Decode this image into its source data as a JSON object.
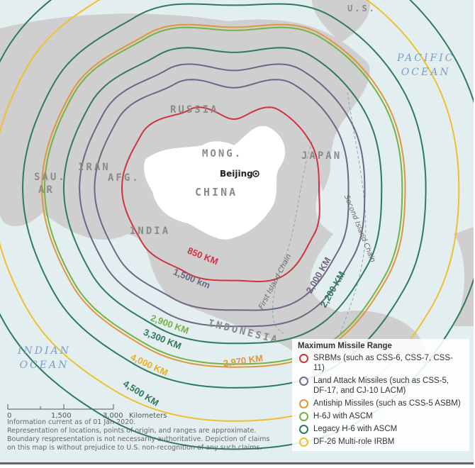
{
  "places": {
    "russia": "RUSSIA",
    "mongolia": "MONG.",
    "china": "CHINA",
    "japan": "JAPAN",
    "india": "INDIA",
    "iran": "IRAN",
    "afghanistan": "AFG.",
    "saudi_arabia_1": "SAU.",
    "saudi_arabia_2": "AR",
    "indonesia": "INDONESIA",
    "us": "U.S.",
    "beijing": "Beijing"
  },
  "oceans": {
    "pacific_1": "PACIFIC",
    "pacific_2": "OCEAN",
    "indian_1": "INDIAN",
    "indian_2": "OCEAN"
  },
  "island_chains": {
    "first": "First Island Chain",
    "second": "Second Island Chain"
  },
  "ranges": [
    {
      "label": "850 KM",
      "color": "#cf3340"
    },
    {
      "label": "1,500 km",
      "color": "#6f6585"
    },
    {
      "label": "2,000 KM",
      "color": "#6f6585"
    },
    {
      "label": "2,200 KM",
      "color": "#2f7a5a"
    },
    {
      "label": "2,900 KM",
      "color": "#74b245"
    },
    {
      "label": "2,970 KM",
      "color": "#e0963a"
    },
    {
      "label": "3,300 KM",
      "color": "#2f7a5a"
    },
    {
      "label": "4,000 KM",
      "color": "#efc02e"
    },
    {
      "label": "4,500 KM",
      "color": "#2f7a5a"
    }
  ],
  "legend": {
    "title": "Maximum Missile Range",
    "items": [
      {
        "label": "SRBMs (such as CSS-6, CSS-7, CSS-11)",
        "color": "#cf3340"
      },
      {
        "label": "Land Attack Missiles (such as CSS-5, DF-17, and CJ-10 LACM)",
        "color": "#7a6a8c"
      },
      {
        "label": "Antiship Missiles (such as CSS-5 ASBM)",
        "color": "#e0963a"
      },
      {
        "label": "H-6J with ASCM",
        "color": "#74b245"
      },
      {
        "label": "Legacy H-6 with ASCM",
        "color": "#2f7a5a"
      },
      {
        "label": "DF-26 Multi-role IRBM",
        "color": "#efc02e"
      }
    ]
  },
  "scale_bar": {
    "ticks": [
      "0",
      "1,500",
      "3,000"
    ],
    "unit": "Kilometers"
  },
  "notes": [
    "Information current as of 01 Jan 2020.",
    "Representation of locations, points of origin, and ranges are approximate.",
    "Boundary respresentation is not necessarily authoritative. Depiction of claims",
    "on this map is without prejudice to U.S. non-recognition of any such claims."
  ]
}
